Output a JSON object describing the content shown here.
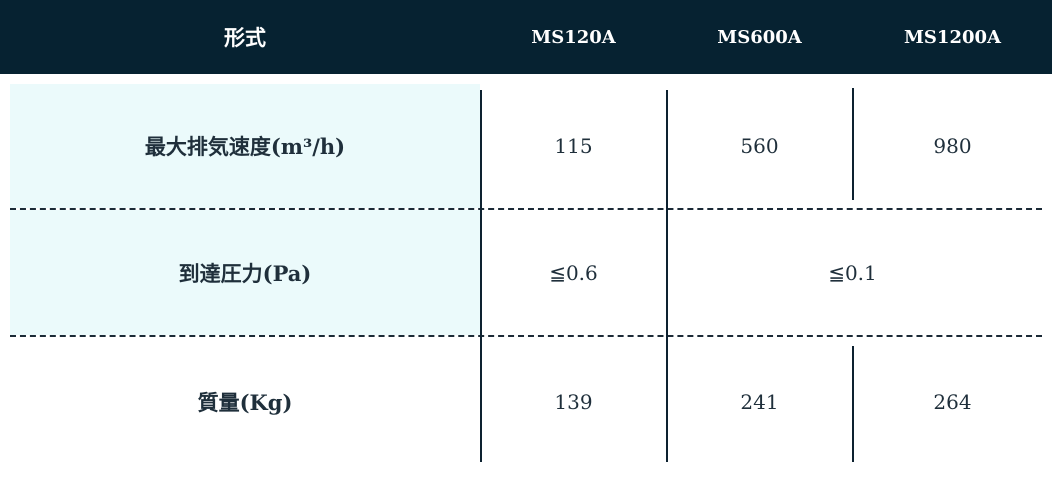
{
  "header": {
    "col0": "形式",
    "col1": "MS120A",
    "col2": "MS600A",
    "col3": "MS1200A"
  },
  "rows": [
    {
      "label": "最大排気速度(m³/h)",
      "values": [
        "115",
        "560",
        "980"
      ]
    },
    {
      "label": "到達圧力(Pa)",
      "values": [
        "≦0.6",
        "≦0.1"
      ]
    },
    {
      "label": "質量(Kg)",
      "values": [
        "139",
        "241",
        "264"
      ]
    }
  ],
  "colors": {
    "header_bg": "#062231",
    "label_bg": "#ebfafb",
    "text": "#1b2a36"
  }
}
